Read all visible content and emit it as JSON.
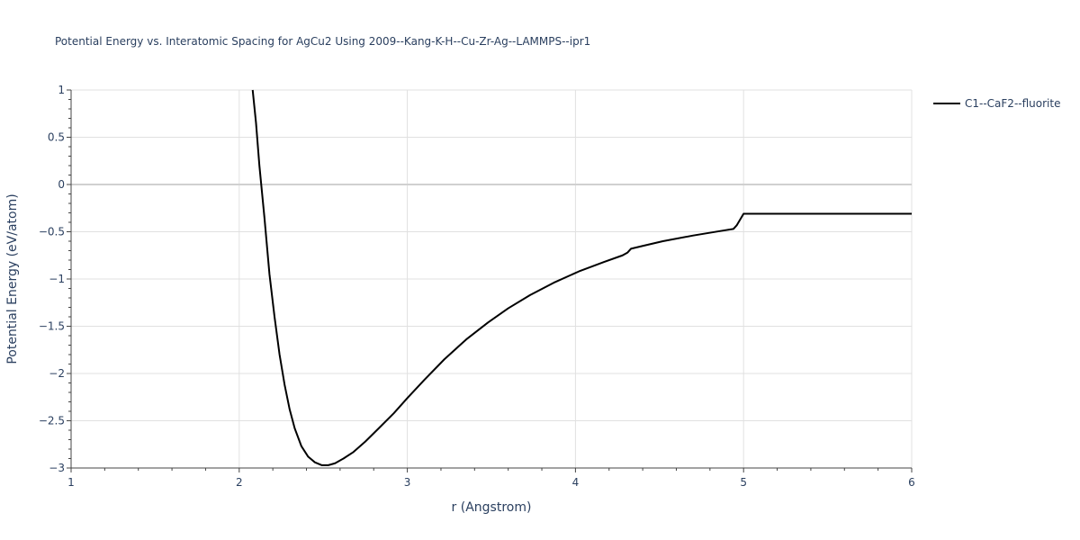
{
  "chart_data": {
    "type": "line",
    "title": "Potential Energy vs. Interatomic Spacing for AgCu2 Using 2009--Kang-K-H--Cu-Zr-Ag--LAMMPS--ipr1",
    "xlabel": "r (Angstrom)",
    "ylabel": "Potential Energy (eV/atom)",
    "xlim": [
      1,
      6
    ],
    "ylim": [
      -3,
      1
    ],
    "x_ticks": [
      1,
      2,
      3,
      4,
      5,
      6
    ],
    "x_tick_labels": [
      "1",
      "2",
      "3",
      "4",
      "5",
      "6"
    ],
    "y_ticks": [
      1,
      0.5,
      0,
      -0.5,
      -1,
      -1.5,
      -2,
      -2.5,
      -3
    ],
    "y_tick_labels": [
      "1",
      "0.5",
      "0",
      "−0.5",
      "−1",
      "−1.5",
      "−2",
      "−2.5",
      "−3"
    ],
    "grid": true,
    "legend_position": "top-right",
    "series": [
      {
        "name": "C1--CaF2--fluorite",
        "color": "#000000",
        "x": [
          2.08,
          2.1,
          2.12,
          2.15,
          2.18,
          2.21,
          2.24,
          2.27,
          2.3,
          2.33,
          2.37,
          2.41,
          2.45,
          2.49,
          2.53,
          2.57,
          2.62,
          2.68,
          2.75,
          2.83,
          2.92,
          3.0,
          3.1,
          3.22,
          3.35,
          3.48,
          3.6,
          3.73,
          3.87,
          4.02,
          4.17,
          4.28,
          4.31,
          4.33,
          4.4,
          4.52,
          4.7,
          4.87,
          4.94,
          4.96,
          5.0,
          5.2,
          5.5,
          6.0
        ],
        "y": [
          1.0,
          0.65,
          0.2,
          -0.35,
          -0.95,
          -1.4,
          -1.8,
          -2.12,
          -2.38,
          -2.58,
          -2.77,
          -2.88,
          -2.94,
          -2.97,
          -2.97,
          -2.95,
          -2.9,
          -2.83,
          -2.72,
          -2.58,
          -2.42,
          -2.26,
          -2.07,
          -1.85,
          -1.64,
          -1.46,
          -1.31,
          -1.17,
          -1.04,
          -0.92,
          -0.82,
          -0.75,
          -0.72,
          -0.68,
          -0.65,
          -0.6,
          -0.54,
          -0.49,
          -0.47,
          -0.43,
          -0.31,
          -0.31,
          -0.31,
          -0.31
        ]
      }
    ]
  }
}
